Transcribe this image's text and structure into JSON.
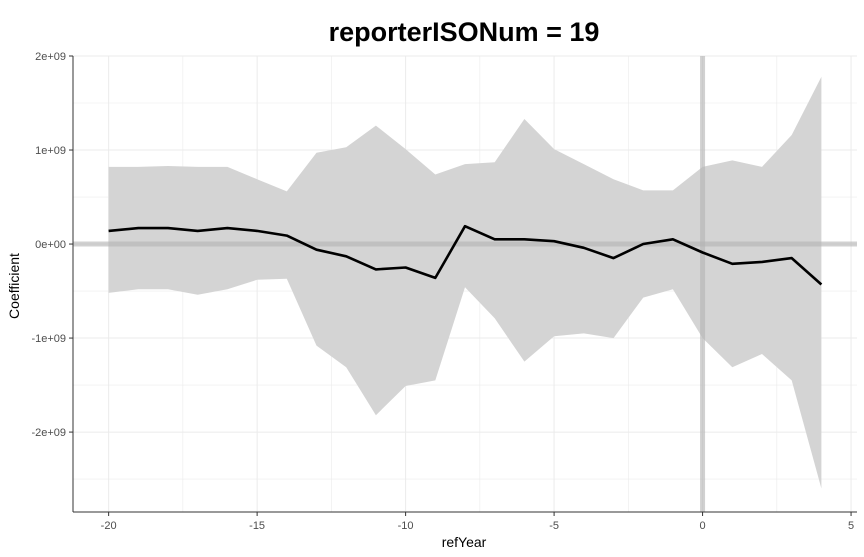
{
  "chart_data": {
    "type": "line",
    "title": "reporterISONum = 19",
    "xlabel": "refYear",
    "ylabel": "Coefficient",
    "xlim": [
      -21.2,
      5.2
    ],
    "ylim": [
      -2850000000.0,
      2000000000.0
    ],
    "grid": true,
    "x_ticks": [
      -20,
      -15,
      -10,
      -5,
      0,
      5
    ],
    "x_tick_labels": [
      "-20",
      "-15",
      "-10",
      "-5",
      "0",
      "5"
    ],
    "y_ticks": [
      2000000000.0,
      1000000000.0,
      0,
      -1000000000.0,
      -2000000000.0
    ],
    "y_tick_labels": [
      "2e+09",
      "1e+09",
      "0e+00",
      "-1e+09",
      "-2e+09"
    ],
    "reference_lines": {
      "x": 0,
      "y": 0
    },
    "colors": {
      "line": "#000000",
      "ribbon": "#d4d4d4",
      "reference": "#b3b3b3",
      "grid": "#ebebeb",
      "axis": "#333333"
    },
    "series": [
      {
        "x": [
          -20,
          -19,
          -18,
          -17,
          -16,
          -15,
          -14,
          -13,
          -12,
          -11,
          -10,
          -9,
          -8,
          -7,
          -6,
          -5,
          -4,
          -3,
          -2,
          -1,
          0,
          1,
          2,
          3,
          4
        ],
        "y": [
          140000000.0,
          170000000.0,
          170000000.0,
          140000000.0,
          170000000.0,
          140000000.0,
          90000000.0,
          -60000000.0,
          -130000000.0,
          -270000000.0,
          -250000000.0,
          -360000000.0,
          190000000.0,
          50000000.0,
          50000000.0,
          30000000.0,
          -40000000.0,
          -150000000.0,
          0.0,
          50000000.0,
          -90000000.0,
          -210000000.0,
          -190000000.0,
          -150000000.0,
          -430000000.0
        ],
        "lower": [
          -520000000.0,
          -480000000.0,
          -480000000.0,
          -540000000.0,
          -480000000.0,
          -380000000.0,
          -370000000.0,
          -1080000000.0,
          -1310000000.0,
          -1820000000.0,
          -1510000000.0,
          -1450000000.0,
          -460000000.0,
          -790000000.0,
          -1250000000.0,
          -980000000.0,
          -950000000.0,
          -1000000000.0,
          -570000000.0,
          -480000000.0,
          -1000000000.0,
          -1310000000.0,
          -1170000000.0,
          -1450000000.0,
          -2600000000.0
        ],
        "upper": [
          820000000.0,
          820000000.0,
          830000000.0,
          820000000.0,
          820000000.0,
          690000000.0,
          560000000.0,
          970000000.0,
          1030000000.0,
          1260000000.0,
          1010000000.0,
          740000000.0,
          850000000.0,
          870000000.0,
          1330000000.0,
          1010000000.0,
          850000000.0,
          690000000.0,
          570000000.0,
          570000000.0,
          820000000.0,
          890000000.0,
          820000000.0,
          1160000000.0,
          1780000000.0
        ]
      }
    ]
  }
}
